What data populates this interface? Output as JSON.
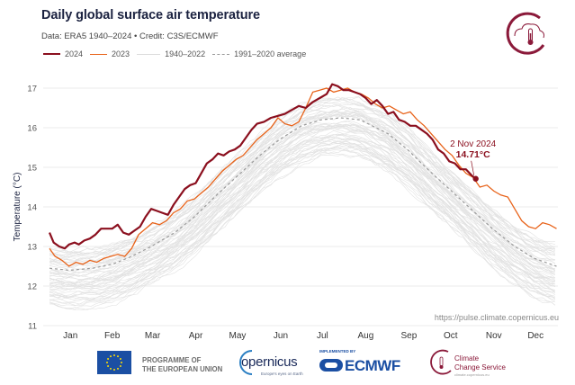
{
  "header": {
    "title": "Daily global surface air temperature",
    "subtitle": "Data: ERA5 1940–2024 • Credit: C3S/ECMWF"
  },
  "colors": {
    "y2024": "#8b0f1e",
    "y2023": "#e8631a",
    "historical": "#dcdcdc",
    "average": "#9a9a9a",
    "title": "#1b2240",
    "brand": "#8b1a3a",
    "ecmwf_blue": "#1b4fa3"
  },
  "source_url": "https://pulse.climate.copernicus.eu",
  "footer": {
    "eu_line1": "PROGRAMME OF",
    "eu_line2": "THE EUROPEAN UNION",
    "copernicus": "opernicus",
    "copernicus_tagline": "Europe's eyes on Earth",
    "implemented_by": "IMPLEMENTED BY",
    "ecmwf": "ECMWF",
    "c3s_line1": "Climate",
    "c3s_line2": "Change Service",
    "c3s_url": "climate.copernicus.eu"
  },
  "icons": {
    "logo": "c3s-thermometer-cloud-icon",
    "eu_flag": "eu-flag-icon",
    "copernicus": "copernicus-logo-icon",
    "ecmwf": "ecmwf-logo-icon"
  },
  "chart_data": {
    "type": "line",
    "title": "Daily global surface air temperature",
    "subtitle": "Data: ERA5 1940–2024 • Credit: C3S/ECMWF",
    "xlabel": "",
    "ylabel": "Temperature (°C)",
    "ylim": [
      11,
      17.3
    ],
    "yticks": [
      11,
      12,
      13,
      14,
      15,
      16,
      17
    ],
    "xlim_day_of_year": [
      1,
      366
    ],
    "month_labels": [
      "Jan",
      "Feb",
      "Mar",
      "Apr",
      "May",
      "Jun",
      "Jul",
      "Aug",
      "Sep",
      "Oct",
      "Nov",
      "Dec"
    ],
    "grid": true,
    "legend_position": "top-left",
    "legend": [
      "2024",
      "2023",
      "1940–2022",
      "1991–2020 average"
    ],
    "annotation": {
      "date_label": "2 Nov 2024",
      "value_label": "14.71°C",
      "day_of_year": 307,
      "value": 14.71
    },
    "series": [
      {
        "name": "2024",
        "style": "solid-thick",
        "x_day_of_year": [
          1,
          4,
          8,
          12,
          15,
          19,
          22,
          26,
          30,
          34,
          38,
          42,
          46,
          50,
          54,
          58,
          62,
          66,
          70,
          74,
          78,
          82,
          86,
          90,
          94,
          98,
          102,
          106,
          110,
          114,
          118,
          122,
          126,
          130,
          134,
          138,
          142,
          146,
          150,
          155,
          160,
          165,
          170,
          175,
          180,
          185,
          190,
          195,
          200,
          204,
          208,
          212,
          216,
          220,
          224,
          228,
          232,
          236,
          240,
          244,
          248,
          252,
          256,
          260,
          264,
          268,
          272,
          276,
          280,
          284,
          288,
          292,
          296,
          300,
          304,
          307
        ],
        "values": [
          13.35,
          13.1,
          13.0,
          12.95,
          13.05,
          13.1,
          13.05,
          13.15,
          13.2,
          13.3,
          13.45,
          13.45,
          13.45,
          13.55,
          13.35,
          13.3,
          13.4,
          13.5,
          13.75,
          13.95,
          13.9,
          13.85,
          13.8,
          14.05,
          14.25,
          14.45,
          14.55,
          14.6,
          14.85,
          15.1,
          15.2,
          15.35,
          15.3,
          15.4,
          15.45,
          15.55,
          15.75,
          15.95,
          16.1,
          16.15,
          16.25,
          16.3,
          16.35,
          16.45,
          16.55,
          16.5,
          16.65,
          16.75,
          16.85,
          17.1,
          17.05,
          16.95,
          16.95,
          16.9,
          16.85,
          16.75,
          16.6,
          16.7,
          16.55,
          16.35,
          16.4,
          16.2,
          16.15,
          16.05,
          16.05,
          15.95,
          15.85,
          15.7,
          15.45,
          15.35,
          15.15,
          15.1,
          14.95,
          14.95,
          14.8,
          14.71
        ]
      },
      {
        "name": "2023",
        "style": "solid",
        "x_day_of_year": [
          1,
          5,
          10,
          15,
          20,
          25,
          30,
          35,
          40,
          45,
          50,
          55,
          60,
          65,
          70,
          75,
          80,
          85,
          90,
          95,
          100,
          105,
          110,
          115,
          120,
          125,
          130,
          135,
          140,
          145,
          150,
          155,
          160,
          165,
          170,
          175,
          180,
          185,
          190,
          195,
          200,
          205,
          210,
          215,
          220,
          225,
          230,
          235,
          240,
          245,
          250,
          255,
          260,
          265,
          270,
          275,
          280,
          285,
          290,
          295,
          300,
          305,
          310,
          315,
          320,
          325,
          330,
          335,
          340,
          345,
          350,
          355,
          360,
          365
        ],
        "values": [
          12.95,
          12.75,
          12.65,
          12.5,
          12.6,
          12.55,
          12.65,
          12.6,
          12.7,
          12.75,
          12.8,
          12.75,
          12.95,
          13.3,
          13.45,
          13.6,
          13.55,
          13.65,
          13.85,
          13.95,
          14.15,
          14.2,
          14.35,
          14.5,
          14.7,
          14.9,
          15.05,
          15.2,
          15.3,
          15.5,
          15.7,
          15.85,
          16.0,
          16.25,
          16.1,
          16.05,
          16.15,
          16.5,
          16.9,
          16.95,
          17.0,
          16.9,
          16.95,
          17.0,
          16.9,
          16.85,
          16.75,
          16.6,
          16.5,
          16.55,
          16.45,
          16.35,
          16.4,
          16.2,
          16.05,
          15.85,
          15.65,
          15.45,
          15.3,
          15.05,
          14.85,
          14.75,
          14.5,
          14.55,
          14.4,
          14.3,
          14.25,
          13.95,
          13.65,
          13.5,
          13.45,
          13.6,
          13.55,
          13.45
        ]
      },
      {
        "name": "1991–2020 average",
        "style": "dashed",
        "x_day_of_year": [
          1,
          15,
          32,
          46,
          60,
          74,
          91,
          105,
          121,
          135,
          152,
          166,
          182,
          196,
          210,
          224,
          244,
          258,
          274,
          288,
          305,
          319,
          335,
          349,
          365
        ],
        "values": [
          12.45,
          12.4,
          12.45,
          12.55,
          12.75,
          13.0,
          13.35,
          13.75,
          14.3,
          14.75,
          15.3,
          15.7,
          16.05,
          16.2,
          16.25,
          16.2,
          15.85,
          15.45,
          14.9,
          14.45,
          13.9,
          13.45,
          13.0,
          12.7,
          12.5
        ]
      },
      {
        "name": "1940–2022",
        "style": "thin-gray-band",
        "description": "individual annual traces spanning roughly average ± 0.8 °C",
        "band_lower_offset": -0.9,
        "band_upper_offset": 0.5
      }
    ]
  }
}
